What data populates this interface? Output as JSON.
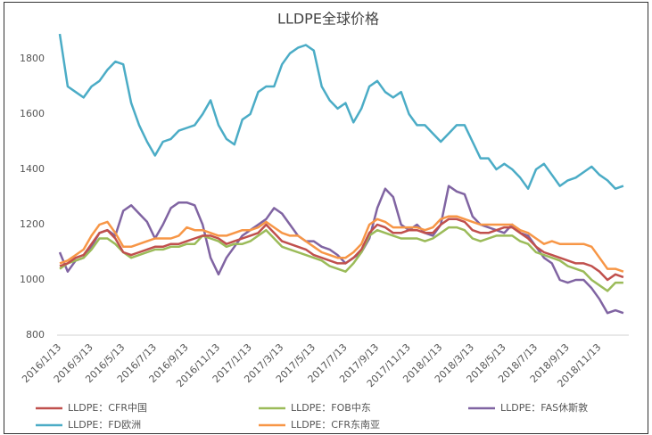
{
  "chart_data": {
    "type": "line",
    "title": "LLDPE全球价格",
    "categories": [
      "2016/1/13",
      null,
      null,
      null,
      "2016/3/13",
      null,
      null,
      null,
      "2016/5/13",
      null,
      null,
      null,
      "2016/7/13",
      null,
      null,
      null,
      "2016/9/13",
      null,
      null,
      null,
      "2016/11/13",
      null,
      null,
      null,
      "2017/1/13",
      null,
      null,
      null,
      "2017/3/13",
      null,
      null,
      null,
      "2017/5/13",
      null,
      null,
      null,
      "2017/7/13",
      null,
      null,
      null,
      "2017/9/13",
      null,
      null,
      null,
      "2017/11/13",
      null,
      null,
      null,
      "2018/1/13",
      null,
      null,
      null,
      "2018/3/13",
      null,
      null,
      null,
      "2018/5/13",
      null,
      null,
      null,
      "2018/7/13",
      null,
      null,
      null,
      "2018/9/13",
      null,
      null,
      null,
      "2018/11/13",
      null,
      null,
      null
    ],
    "series": [
      {
        "name": "LLDPE：CFR中国",
        "color": "#c0504d",
        "values": [
          1050,
          1060,
          1080,
          1090,
          1130,
          1170,
          1180,
          1150,
          1100,
          1090,
          1100,
          1110,
          1120,
          1120,
          1130,
          1130,
          1140,
          1150,
          1160,
          1160,
          1150,
          1130,
          1140,
          1150,
          1160,
          1170,
          1200,
          1170,
          1140,
          1130,
          1120,
          1110,
          1090,
          1080,
          1070,
          1060,
          1060,
          1080,
          1110,
          1170,
          1200,
          1190,
          1170,
          1170,
          1180,
          1180,
          1170,
          1170,
          1200,
          1220,
          1220,
          1210,
          1180,
          1170,
          1170,
          1180,
          1190,
          1190,
          1170,
          1150,
          1120,
          1100,
          1090,
          1080,
          1070,
          1060,
          1060,
          1050,
          1030,
          1000,
          1020,
          1010
        ]
      },
      {
        "name": "LLDPE：FOB中东",
        "color": "#9bbb59",
        "values": [
          1040,
          1060,
          1070,
          1080,
          1110,
          1150,
          1150,
          1130,
          1100,
          1080,
          1090,
          1100,
          1110,
          1110,
          1120,
          1120,
          1130,
          1130,
          1160,
          1150,
          1140,
          1120,
          1130,
          1130,
          1140,
          1160,
          1180,
          1150,
          1120,
          1110,
          1100,
          1090,
          1080,
          1070,
          1050,
          1040,
          1030,
          1060,
          1100,
          1160,
          1180,
          1170,
          1160,
          1150,
          1150,
          1150,
          1140,
          1150,
          1170,
          1190,
          1190,
          1180,
          1150,
          1140,
          1150,
          1160,
          1160,
          1160,
          1140,
          1130,
          1100,
          1090,
          1080,
          1070,
          1050,
          1040,
          1030,
          1000,
          980,
          960,
          990,
          990
        ]
      },
      {
        "name": "LLDPE：FAS休斯敦",
        "color": "#8064a2",
        "values": [
          1100,
          1030,
          1070,
          1080,
          1120,
          1170,
          1180,
          1160,
          1250,
          1270,
          1240,
          1210,
          1150,
          1200,
          1260,
          1280,
          1280,
          1270,
          1200,
          1080,
          1020,
          1080,
          1120,
          1160,
          1180,
          1200,
          1220,
          1260,
          1240,
          1200,
          1160,
          1140,
          1140,
          1120,
          1110,
          1090,
          1060,
          1080,
          1100,
          1150,
          1260,
          1330,
          1300,
          1200,
          1180,
          1200,
          1170,
          1160,
          1200,
          1340,
          1320,
          1310,
          1230,
          1200,
          1190,
          1180,
          1170,
          1200,
          1170,
          1160,
          1120,
          1080,
          1060,
          1000,
          990,
          1000,
          1000,
          970,
          930,
          880,
          890,
          880
        ]
      },
      {
        "name": "LLDPE：FD欧洲",
        "color": "#4bacc6",
        "values": [
          1890,
          1700,
          1680,
          1660,
          1700,
          1720,
          1760,
          1790,
          1780,
          1640,
          1560,
          1500,
          1450,
          1500,
          1510,
          1540,
          1550,
          1560,
          1600,
          1650,
          1560,
          1510,
          1490,
          1580,
          1600,
          1680,
          1700,
          1700,
          1780,
          1820,
          1840,
          1850,
          1830,
          1700,
          1650,
          1620,
          1640,
          1570,
          1620,
          1700,
          1720,
          1680,
          1660,
          1680,
          1600,
          1560,
          1560,
          1530,
          1500,
          1530,
          1560,
          1560,
          1500,
          1440,
          1440,
          1400,
          1420,
          1400,
          1370,
          1330,
          1400,
          1420,
          1380,
          1340,
          1360,
          1370,
          1390,
          1410,
          1380,
          1360,
          1330,
          1340
        ]
      },
      {
        "name": "LLDPE：CFR东南亚",
        "color": "#f79646",
        "values": [
          1060,
          1070,
          1090,
          1110,
          1160,
          1200,
          1210,
          1170,
          1120,
          1120,
          1130,
          1140,
          1150,
          1150,
          1150,
          1160,
          1190,
          1180,
          1180,
          1170,
          1160,
          1160,
          1170,
          1180,
          1180,
          1190,
          1210,
          1190,
          1170,
          1160,
          1160,
          1140,
          1120,
          1100,
          1090,
          1080,
          1080,
          1100,
          1130,
          1200,
          1220,
          1210,
          1190,
          1190,
          1190,
          1190,
          1180,
          1190,
          1220,
          1230,
          1230,
          1220,
          1210,
          1200,
          1200,
          1200,
          1200,
          1200,
          1180,
          1170,
          1150,
          1130,
          1140,
          1130,
          1130,
          1130,
          1130,
          1120,
          1080,
          1040,
          1040,
          1030
        ]
      }
    ],
    "ylim": [
      800,
      1900
    ],
    "yticks": [
      800,
      1000,
      1200,
      1400,
      1600,
      1800
    ],
    "grid": false,
    "legend": "bottom"
  }
}
